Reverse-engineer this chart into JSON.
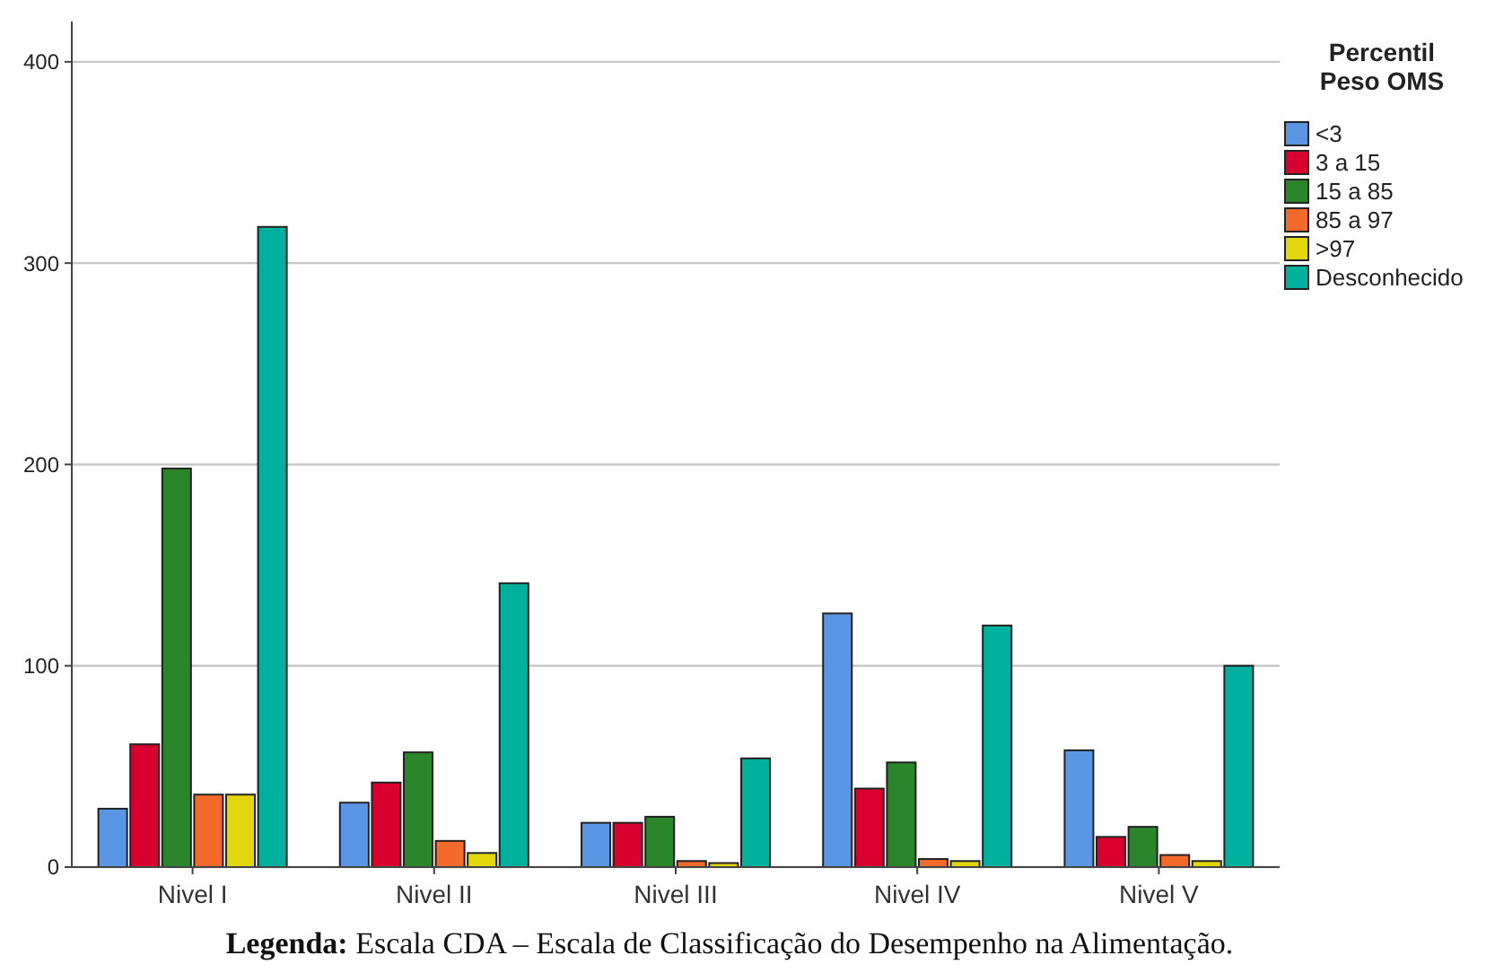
{
  "chart_data": {
    "type": "bar",
    "categories": [
      "Nivel I",
      "Nivel II",
      "Nivel III",
      "Nivel IV",
      "Nivel V"
    ],
    "series": [
      {
        "name": "<3",
        "color": "#5b96e4",
        "values": [
          29,
          32,
          22,
          126,
          58
        ]
      },
      {
        "name": "3 a 15",
        "color": "#d7002f",
        "values": [
          61,
          42,
          22,
          39,
          15
        ]
      },
      {
        "name": "15 a 85",
        "color": "#2b852b",
        "values": [
          198,
          57,
          25,
          52,
          20
        ]
      },
      {
        "name": "85 a 97",
        "color": "#f46a2a",
        "values": [
          36,
          13,
          3,
          4,
          6
        ]
      },
      {
        "name": ">97",
        "color": "#e2d70f",
        "values": [
          36,
          7,
          2,
          3,
          3
        ]
      },
      {
        "name": "Desconhecido",
        "color": "#00b09e",
        "values": [
          318,
          141,
          54,
          120,
          100
        ]
      }
    ],
    "ylim": [
      0,
      420
    ],
    "yticks": [
      0,
      100,
      200,
      300,
      400
    ],
    "grid": "y",
    "legend": "top right",
    "legend_title": "Percentil\nPeso OMS",
    "annotations": [
      "Legenda: Escala CDA – Escala de Classificação do Desempenho na Alimentação."
    ]
  }
}
